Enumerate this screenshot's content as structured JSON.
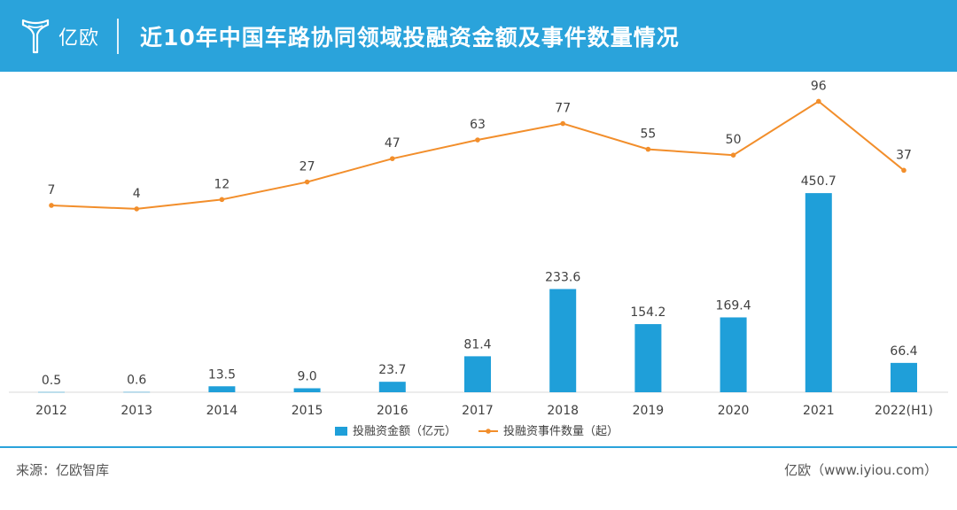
{
  "header": {
    "logo_text": "亿欧",
    "title": "近10年中国车路协同领域投融资金额及事件数量情况"
  },
  "footer": {
    "source": "来源：亿欧智库",
    "site": "亿欧（www.iyiou.com）"
  },
  "colors": {
    "brand": "#2aa3db",
    "bar": "#1f9fd9",
    "line": "#f28e2b"
  },
  "chart_data": {
    "type": "bar+line",
    "categories": [
      "2012",
      "2013",
      "2014",
      "2015",
      "2016",
      "2017",
      "2018",
      "2019",
      "2020",
      "2021",
      "2022(H1)"
    ],
    "series": [
      {
        "name": "投融资金额（亿元）",
        "type": "bar",
        "values": [
          0.5,
          0.6,
          13.5,
          9.0,
          23.7,
          81.4,
          233.6,
          154.2,
          169.4,
          450.7,
          66.4
        ],
        "labels": [
          "0.5",
          "0.6",
          "13.5",
          "9.0",
          "23.7",
          "81.4",
          "233.6",
          "154.2",
          "169.4",
          "450.7",
          "66.4"
        ]
      },
      {
        "name": "投融资事件数量（起）",
        "type": "line",
        "values": [
          7,
          4,
          12,
          27,
          47,
          63,
          77,
          55,
          50,
          96,
          37
        ],
        "labels": [
          "7",
          "4",
          "12",
          "27",
          "47",
          "63",
          "77",
          "55",
          "50",
          "96",
          "37"
        ]
      }
    ],
    "legend_position": "bottom",
    "grid": false
  }
}
